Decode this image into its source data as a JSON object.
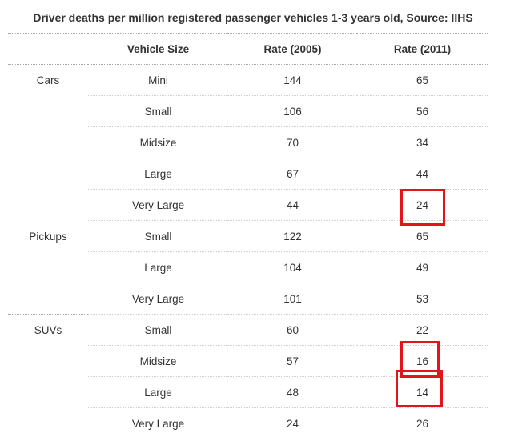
{
  "title": "Driver deaths per million registered passenger vehicles 1-3 years old, Source: IIHS",
  "columns": [
    "",
    "Vehicle Size",
    "Rate (2005)",
    "Rate (2011)"
  ],
  "groups": [
    {
      "name": "Cars",
      "rows": [
        {
          "size": "Mini",
          "rate_2005": "144",
          "rate_2011": "65"
        },
        {
          "size": "Small",
          "rate_2005": "106",
          "rate_2011": "56"
        },
        {
          "size": "Midsize",
          "rate_2005": "70",
          "rate_2011": "34"
        },
        {
          "size": "Large",
          "rate_2005": "67",
          "rate_2011": "44"
        },
        {
          "size": "Very Large",
          "rate_2005": "44",
          "rate_2011": "24"
        }
      ]
    },
    {
      "name": "Pickups",
      "rows": [
        {
          "size": "Small",
          "rate_2005": "122",
          "rate_2011": "65"
        },
        {
          "size": "Large",
          "rate_2005": "104",
          "rate_2011": "49"
        },
        {
          "size": "Very Large",
          "rate_2005": "101",
          "rate_2011": "53"
        }
      ]
    },
    {
      "name": "SUVs",
      "rows": [
        {
          "size": "Small",
          "rate_2005": "60",
          "rate_2011": "22"
        },
        {
          "size": "Midsize",
          "rate_2005": "57",
          "rate_2011": "16"
        },
        {
          "size": "Large",
          "rate_2005": "48",
          "rate_2011": "14"
        },
        {
          "size": "Very Large",
          "rate_2005": "24",
          "rate_2011": "26"
        }
      ]
    }
  ],
  "highlight_color": "#e3141b"
}
